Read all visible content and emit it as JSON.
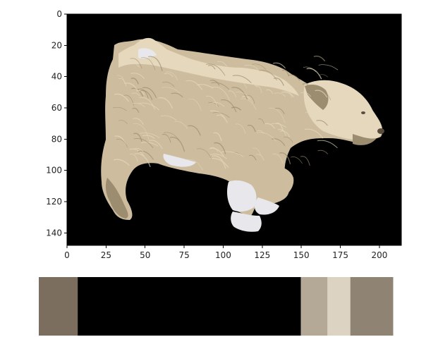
{
  "image_plot": {
    "background_color": "#000000",
    "subject_description": "dog",
    "x_ticks": [
      "0",
      "25",
      "50",
      "75",
      "100",
      "125",
      "150",
      "175",
      "200"
    ],
    "y_ticks": [
      "0",
      "20",
      "40",
      "60",
      "80",
      "100",
      "120",
      "140"
    ],
    "x_range": [
      0,
      214
    ],
    "y_range": [
      148,
      0
    ],
    "x_tick_values": [
      0,
      25,
      50,
      75,
      100,
      125,
      150,
      175,
      200
    ],
    "y_tick_values": [
      0,
      20,
      40,
      60,
      80,
      100,
      120,
      140
    ],
    "dog_colors": {
      "body": "#cdbd9e",
      "light": "#e6d8bc",
      "shadow": "#9c8c70",
      "dark": "#5a4c3c",
      "white": "#e8e8ec"
    }
  },
  "palette": {
    "swatches": [
      {
        "color": "#7b6e5e",
        "fraction": 0.11
      },
      {
        "color": "#000000",
        "fraction": 0.63
      },
      {
        "color": "#b4a896",
        "fraction": 0.075
      },
      {
        "color": "#ddd3c3",
        "fraction": 0.065
      },
      {
        "color": "#8f8474",
        "fraction": 0.12
      }
    ]
  }
}
